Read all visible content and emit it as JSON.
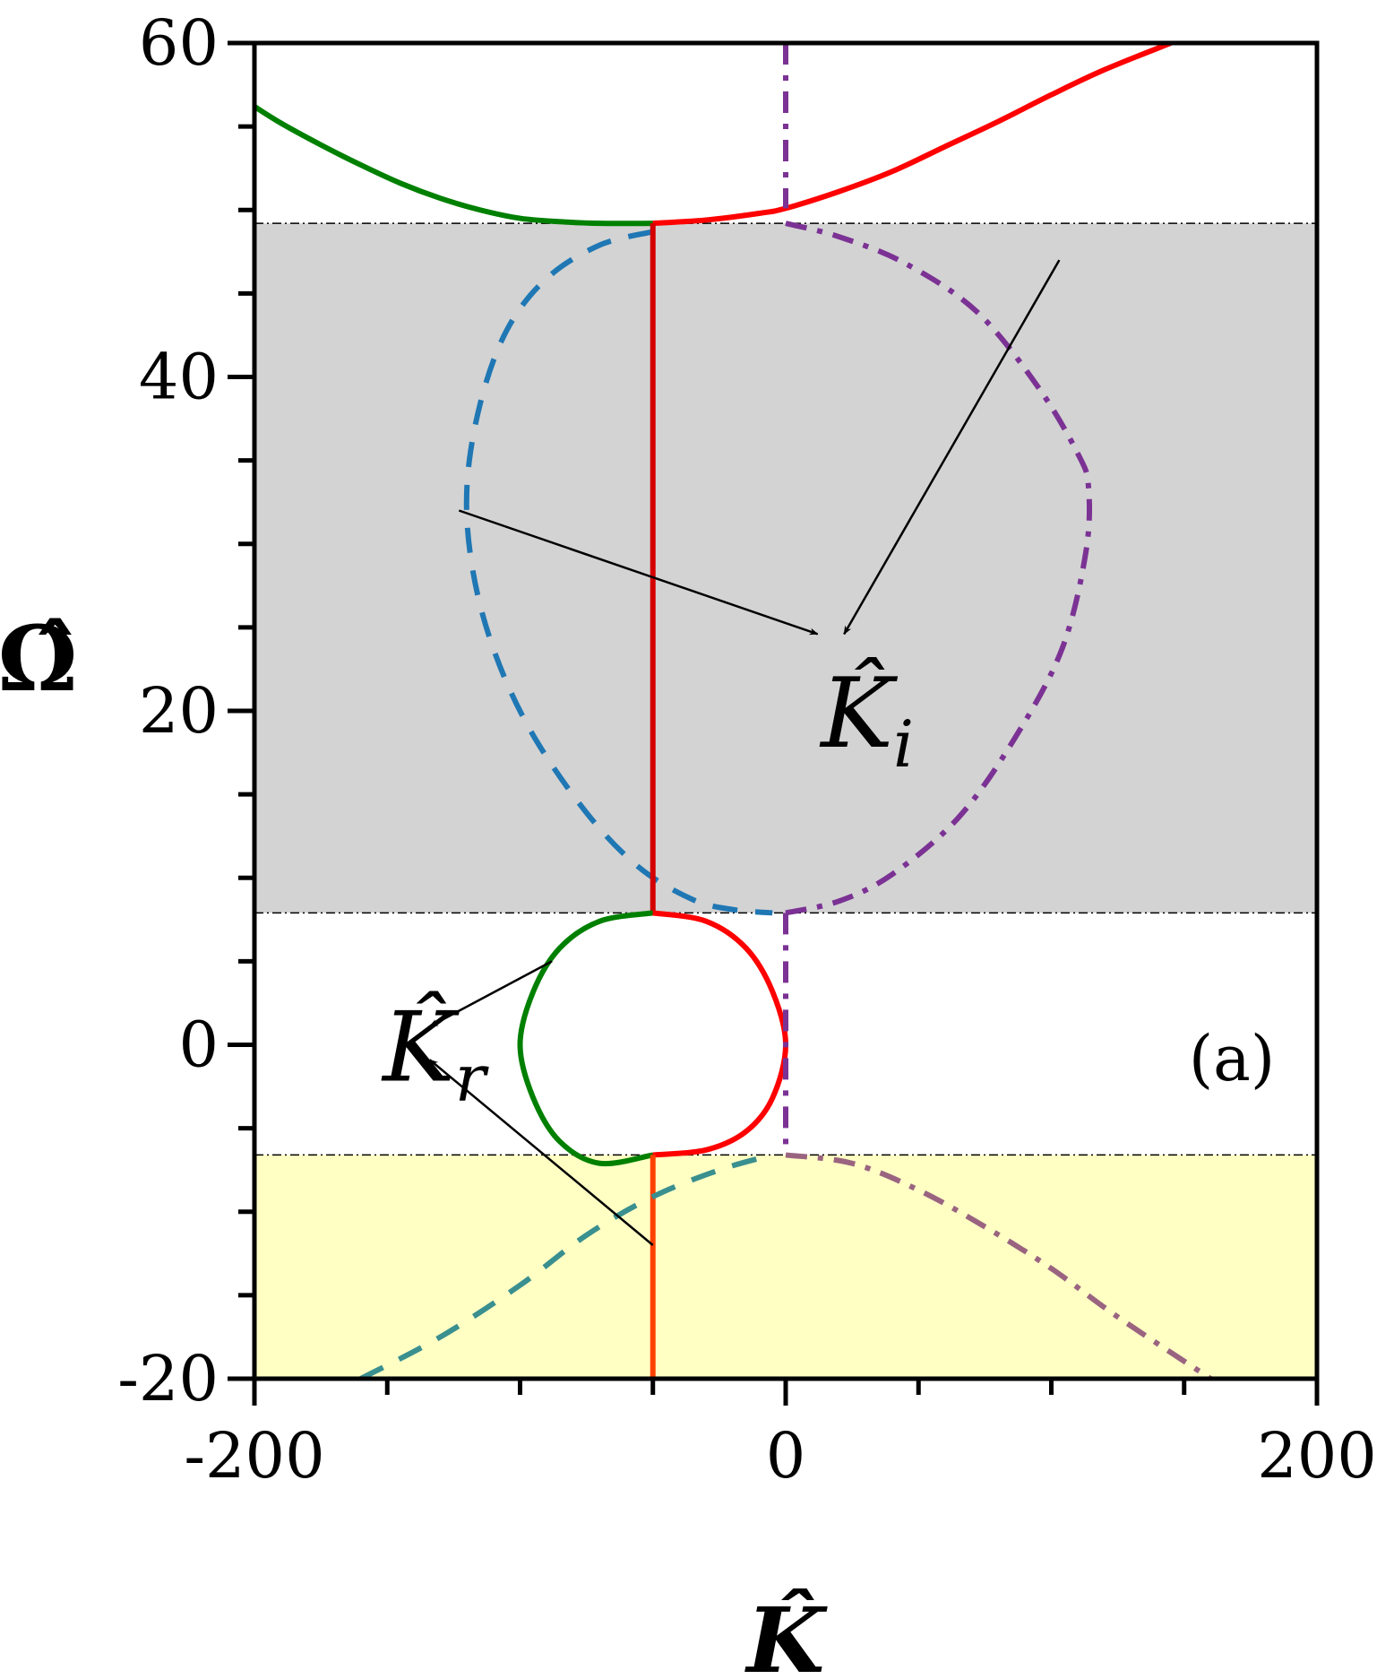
{
  "chart_data": {
    "type": "line",
    "panel_label": "(a)",
    "xlabel": "K̂",
    "ylabel": "Ω̂",
    "xlim": [
      -200,
      200
    ],
    "ylim": [
      -20,
      60
    ],
    "x_ticks": [
      -200,
      0,
      200
    ],
    "x_tick_labels": [
      "-200",
      "0",
      "200"
    ],
    "y_ticks": [
      -20,
      0,
      20,
      40,
      60
    ],
    "y_tick_labels": [
      "-20",
      "0",
      "20",
      "40",
      "60"
    ],
    "grid": false,
    "bands": [
      {
        "name": "gray band",
        "y_range": [
          7.9,
          49.2
        ],
        "color": "#d3d3d3"
      },
      {
        "name": "yellow band",
        "y_range": [
          -20,
          -6.6
        ],
        "color": "#ffffc4"
      }
    ],
    "band_edge_lines": [
      49.2,
      7.9,
      -6.6
    ],
    "series": [
      {
        "style": "solid",
        "color": "#008000",
        "points": [
          [
            -200,
            56.2
          ],
          [
            -190,
            55.2
          ],
          [
            -175,
            53.9
          ],
          [
            -160,
            52.7
          ],
          [
            -145,
            51.6
          ],
          [
            -130,
            50.7
          ],
          [
            -115,
            50.0
          ],
          [
            -100,
            49.5
          ],
          [
            -85,
            49.3
          ],
          [
            -70,
            49.2
          ],
          [
            -50,
            49.2
          ]
        ]
      },
      {
        "style": "solid",
        "color": "#ff0000",
        "points": [
          [
            -50,
            49.2
          ],
          [
            -30,
            49.4
          ],
          [
            -10,
            49.8
          ],
          [
            0,
            50.1
          ],
          [
            20,
            51.1
          ],
          [
            40,
            52.3
          ],
          [
            60,
            53.8
          ],
          [
            80,
            55.3
          ],
          [
            100,
            56.9
          ],
          [
            120,
            58.4
          ],
          [
            145,
            60
          ]
        ]
      },
      {
        "style": "dashdot",
        "color": "#7b3294",
        "points": [
          [
            0,
            60
          ],
          [
            0,
            50.1
          ]
        ]
      },
      {
        "style": "dashed",
        "color": "#1f77b4",
        "points": [
          [
            -50,
            48.7
          ],
          [
            -70,
            47.9
          ],
          [
            -90,
            45.9
          ],
          [
            -105,
            42.8
          ],
          [
            -115,
            38.4
          ],
          [
            -120,
            33.4
          ],
          [
            -118,
            28.6
          ],
          [
            -110,
            23.7
          ],
          [
            -96,
            18.8
          ],
          [
            -75,
            13.9
          ],
          [
            -55,
            10.6
          ],
          [
            -35,
            8.7
          ],
          [
            -20,
            8.1
          ],
          [
            -5,
            7.9
          ]
        ]
      },
      {
        "style": "dashdot",
        "color": "#7b3294",
        "points": [
          [
            0,
            49.2
          ],
          [
            20,
            48.4
          ],
          [
            45,
            46.8
          ],
          [
            72,
            43.9
          ],
          [
            95,
            39.4
          ],
          [
            110,
            35.4
          ],
          [
            114,
            33.4
          ],
          [
            113,
            29.5
          ],
          [
            104,
            23.7
          ],
          [
            86,
            18.3
          ],
          [
            65,
            13.6
          ],
          [
            40,
            10.2
          ],
          [
            20,
            8.6
          ],
          [
            0,
            7.9
          ]
        ]
      },
      {
        "style": "solid",
        "color": "#d40000",
        "points": [
          [
            -50,
            49.2
          ],
          [
            -50,
            7.9
          ]
        ]
      },
      {
        "style": "solid",
        "color": "#008000",
        "points": [
          [
            -50,
            7.9
          ],
          [
            -70,
            7.4
          ],
          [
            -85,
            5.8
          ],
          [
            -95,
            3.2
          ],
          [
            -100,
            0
          ],
          [
            -95,
            -3.2
          ],
          [
            -85,
            -5.8
          ],
          [
            -70,
            -7.1
          ],
          [
            -50,
            -6.6
          ]
        ]
      },
      {
        "style": "solid",
        "color": "#ff0000",
        "points": [
          [
            -50,
            7.9
          ],
          [
            -30,
            7.4
          ],
          [
            -15,
            5.8
          ],
          [
            -5,
            3.2
          ],
          [
            0,
            0
          ],
          [
            -5,
            -3.2
          ],
          [
            -15,
            -5.2
          ],
          [
            -30,
            -6.3
          ],
          [
            -50,
            -6.6
          ]
        ]
      },
      {
        "style": "dashdot",
        "color": "#7b3294",
        "points": [
          [
            0,
            7.9
          ],
          [
            0,
            -6.6
          ]
        ]
      },
      {
        "style": "solid",
        "color": "#ff4000",
        "points": [
          [
            -50,
            -6.6
          ],
          [
            -50,
            -20
          ]
        ]
      },
      {
        "style": "dashed",
        "color": "#3a8f8f",
        "points": [
          [
            -160,
            -20
          ],
          [
            -130,
            -17.5
          ],
          [
            -100,
            -14.4
          ],
          [
            -75,
            -11.4
          ],
          [
            -50,
            -9.1
          ],
          [
            -25,
            -7.5
          ],
          [
            -5,
            -6.6
          ]
        ]
      },
      {
        "style": "dashdot",
        "color": "#9a6480",
        "points": [
          [
            0,
            -6.6
          ],
          [
            25,
            -7.1
          ],
          [
            50,
            -8.7
          ],
          [
            75,
            -10.9
          ],
          [
            100,
            -13.4
          ],
          [
            125,
            -16.3
          ],
          [
            160,
            -20
          ]
        ]
      }
    ],
    "annotations": [
      {
        "text": "K̂",
        "subscript": "i",
        "label_at": [
          20,
          20
        ],
        "arrows": [
          {
            "from": [
              -123,
              32
            ],
            "to": [
              12,
              24.6
            ]
          },
          {
            "from": [
              103,
              47
            ],
            "to": [
              22,
              24.6
            ]
          }
        ]
      },
      {
        "text": "K̂",
        "subscript": "r",
        "label_at": [
          -145,
          0
        ],
        "arrows": [
          {
            "from": [
              -88,
              5
            ],
            "to": [
              -134,
              1.1
            ]
          },
          {
            "from": [
              -50,
              -12
            ],
            "to": [
              -134,
              -0.9
            ]
          }
        ]
      }
    ]
  }
}
